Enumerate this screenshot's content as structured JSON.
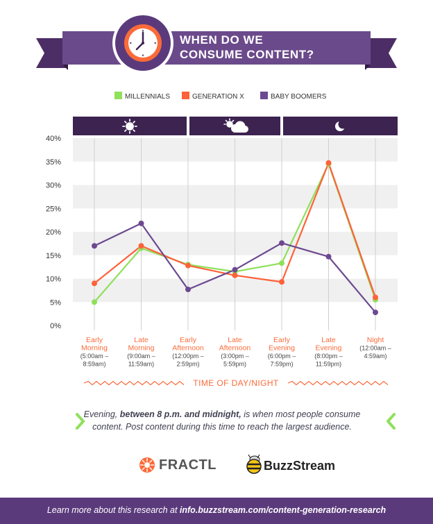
{
  "title_line1": "WHEN DO WE",
  "title_line2": "CONSUME CONTENT?",
  "colors": {
    "purple_dark": "#3d2350",
    "purple": "#6b4a8b",
    "millennials": "#8fe05b",
    "genx": "#fd623a",
    "boomers": "#6c4990",
    "orange_text": "#fa6b39"
  },
  "icons": {
    "clock": "clock-icon",
    "morning": "sun-icon",
    "afternoon": "sun-cloud-icon",
    "night": "moon-icon"
  },
  "chart_data": {
    "type": "line",
    "categories": [
      "Early Morning",
      "Late Morning",
      "Early Afternoon",
      "Late Afternoon",
      "Early Evening",
      "Late Evening",
      "Night"
    ],
    "category_lines": [
      [
        "Early",
        "Morning",
        "(5:00am –",
        "8:59am)"
      ],
      [
        "Late",
        "Morning",
        "(9:00am –",
        "11:59am)"
      ],
      [
        "Early",
        "Afternoon",
        "(12:00pm –",
        "2:59pm)"
      ],
      [
        "Late",
        "Afternoon",
        "(3:00pm –",
        "5:59pm)"
      ],
      [
        "Early",
        "Evening",
        "(6:00pm –",
        "7:59pm)"
      ],
      [
        "Late",
        "Evening",
        "(8:00pm –",
        "11:59pm)"
      ],
      [
        "Night",
        "(12:00am –",
        "4:59am)"
      ]
    ],
    "series": [
      {
        "name": "MILLENNIALS",
        "color": "#8fe05b",
        "values": [
          5,
          16.5,
          13,
          11.5,
          13.3,
          34.5,
          5.5
        ]
      },
      {
        "name": "GENERATION X",
        "color": "#fd623a",
        "values": [
          9,
          17,
          12.8,
          10.7,
          9.3,
          34.7,
          6
        ]
      },
      {
        "name": "BABY BOOMERS",
        "color": "#6c4990",
        "values": [
          17,
          21.8,
          7.7,
          11.9,
          17.6,
          14.7,
          2.8
        ]
      }
    ],
    "ylim": [
      0,
      40
    ],
    "yticks": [
      "0%",
      "5%",
      "10%",
      "15%",
      "20%",
      "25%",
      "30%",
      "35%",
      "40%"
    ],
    "xlabel": "TIME OF DAY/NIGHT",
    "legend": "top",
    "grid": "horizontal bands"
  },
  "caption": {
    "pre": "Evening, ",
    "bold": "between 8 p.m. and midnight,",
    "post": " is when most people consume content. Post content during this time to reach the largest audience."
  },
  "logos": {
    "fractl": "FRACTL",
    "buzzstream": "BuzzStream"
  },
  "footer": {
    "pre": "Learn more about this research at ",
    "link": "info.buzzstream.com/content-generation-research"
  }
}
